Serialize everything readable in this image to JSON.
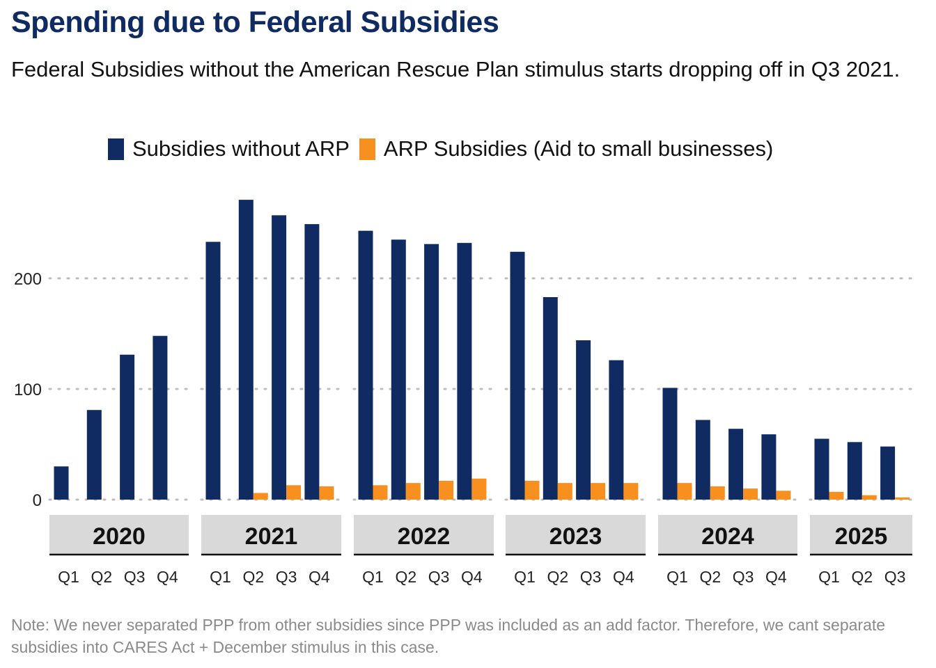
{
  "title": "Spending due to Federal Subsidies",
  "subtitle": "Federal Subsidies without the American Rescue Plan stimulus starts dropping off in Q3 2021.",
  "note": "Note: We never separated PPP from other subsidies since PPP was included as an add factor. Therefore, we cant separate subsidies into CARES Act + December stimulus in this case.",
  "legend": [
    {
      "label": "Subsidies without ARP",
      "color": "#0f2b62"
    },
    {
      "label": "ARP Subsidies (Aid to small businesses)",
      "color": "#f7901e"
    }
  ],
  "chart_data": {
    "type": "bar",
    "grid": "horizontal dotted",
    "legend_position": "top",
    "ylim": [
      0,
      280
    ],
    "yticks": [
      0,
      100,
      200
    ],
    "groups": [
      {
        "year": "2020",
        "quarters": [
          "Q1",
          "Q2",
          "Q3",
          "Q4"
        ]
      },
      {
        "year": "2021",
        "quarters": [
          "Q1",
          "Q2",
          "Q3",
          "Q4"
        ]
      },
      {
        "year": "2022",
        "quarters": [
          "Q1",
          "Q2",
          "Q3",
          "Q4"
        ]
      },
      {
        "year": "2023",
        "quarters": [
          "Q1",
          "Q2",
          "Q3",
          "Q4"
        ]
      },
      {
        "year": "2024",
        "quarters": [
          "Q1",
          "Q2",
          "Q3",
          "Q4"
        ]
      },
      {
        "year": "2025",
        "quarters": [
          "Q1",
          "Q2",
          "Q3"
        ]
      }
    ],
    "series": [
      {
        "name": "Subsidies without ARP",
        "color": "#0f2b62",
        "values": [
          30,
          81,
          131,
          148,
          233,
          271,
          257,
          249,
          243,
          235,
          231,
          232,
          224,
          183,
          144,
          126,
          101,
          72,
          64,
          59,
          55,
          52,
          48
        ]
      },
      {
        "name": "ARP Subsidies (Aid to small businesses)",
        "color": "#f7901e",
        "values": [
          0,
          0,
          0,
          0,
          0,
          6,
          13,
          12,
          13,
          15,
          17,
          19,
          17,
          15,
          15,
          15,
          15,
          12,
          10,
          8,
          7,
          4,
          2
        ]
      }
    ]
  }
}
